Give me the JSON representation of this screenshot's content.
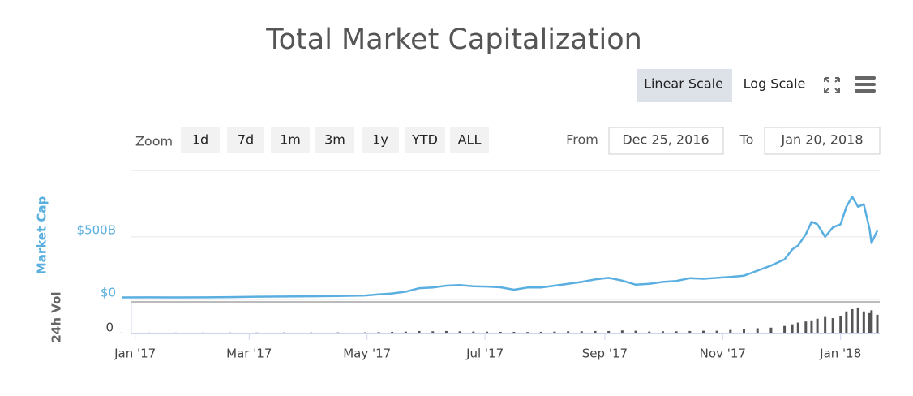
{
  "chart_data": [
    {
      "type": "line",
      "title": "Total Market Capitalization",
      "y_label": "Market Cap",
      "color": "#5aafe0",
      "x": [
        "2016-12-25",
        "2017-01-08",
        "2017-01-22",
        "2017-02-05",
        "2017-02-19",
        "2017-03-05",
        "2017-03-19",
        "2017-04-02",
        "2017-04-16",
        "2017-04-30",
        "2017-05-07",
        "2017-05-14",
        "2017-05-21",
        "2017-05-28",
        "2017-06-04",
        "2017-06-11",
        "2017-06-18",
        "2017-06-25",
        "2017-07-02",
        "2017-07-09",
        "2017-07-16",
        "2017-07-23",
        "2017-07-30",
        "2017-08-06",
        "2017-08-13",
        "2017-08-20",
        "2017-08-27",
        "2017-09-03",
        "2017-09-10",
        "2017-09-17",
        "2017-09-24",
        "2017-10-01",
        "2017-10-08",
        "2017-10-15",
        "2017-10-22",
        "2017-10-29",
        "2017-11-05",
        "2017-11-12",
        "2017-11-19",
        "2017-11-26",
        "2017-12-03",
        "2017-12-07",
        "2017-12-10",
        "2017-12-14",
        "2017-12-17",
        "2017-12-20",
        "2017-12-24",
        "2017-12-28",
        "2018-01-01",
        "2018-01-04",
        "2018-01-07",
        "2018-01-10",
        "2018-01-13",
        "2018-01-16",
        "2018-01-17",
        "2018-01-20"
      ],
      "values": [
        16,
        17,
        16,
        17,
        19,
        22,
        23,
        25,
        28,
        32,
        40,
        48,
        62,
        90,
        95,
        110,
        115,
        105,
        103,
        97,
        78,
        95,
        95,
        110,
        125,
        140,
        160,
        172,
        150,
        118,
        125,
        140,
        148,
        170,
        165,
        172,
        180,
        190,
        230,
        270,
        320,
        400,
        430,
        520,
        620,
        600,
        500,
        575,
        600,
        740,
        820,
        740,
        760,
        560,
        450,
        550
      ],
      "xlim": [
        "2016-12-25",
        "2018-01-20"
      ],
      "xticks": [
        {
          "value": "2017-01-01",
          "label": "Jan '17"
        },
        {
          "value": "2017-03-01",
          "label": "Mar '17"
        },
        {
          "value": "2017-05-01",
          "label": "May '17"
        },
        {
          "value": "2017-07-01",
          "label": "Jul '17"
        },
        {
          "value": "2017-09-01",
          "label": "Sep '17"
        },
        {
          "value": "2017-11-01",
          "label": "Nov '17"
        },
        {
          "value": "2018-01-01",
          "label": "Jan '18"
        }
      ],
      "ylim": [
        0,
        1030
      ],
      "yticks": [
        {
          "value": 0,
          "label": "$0"
        },
        {
          "value": 500,
          "label": "$500B"
        }
      ],
      "grid": true
    },
    {
      "type": "bar",
      "y_label": "24h Vol",
      "color": "#555555",
      "x": [
        "2016-12-25",
        "2017-01-08",
        "2017-01-22",
        "2017-02-05",
        "2017-02-19",
        "2017-03-05",
        "2017-03-19",
        "2017-04-02",
        "2017-04-16",
        "2017-04-30",
        "2017-05-07",
        "2017-05-14",
        "2017-05-21",
        "2017-05-28",
        "2017-06-04",
        "2017-06-11",
        "2017-06-18",
        "2017-06-25",
        "2017-07-02",
        "2017-07-09",
        "2017-07-16",
        "2017-07-23",
        "2017-07-30",
        "2017-08-06",
        "2017-08-13",
        "2017-08-20",
        "2017-08-27",
        "2017-09-03",
        "2017-09-10",
        "2017-09-17",
        "2017-09-24",
        "2017-10-01",
        "2017-10-08",
        "2017-10-15",
        "2017-10-22",
        "2017-10-29",
        "2017-11-05",
        "2017-11-12",
        "2017-11-19",
        "2017-11-26",
        "2017-12-03",
        "2017-12-07",
        "2017-12-10",
        "2017-12-14",
        "2017-12-17",
        "2017-12-20",
        "2017-12-24",
        "2017-12-28",
        "2018-01-01",
        "2018-01-04",
        "2018-01-07",
        "2018-01-10",
        "2018-01-13",
        "2018-01-16",
        "2018-01-17",
        "2018-01-20"
      ],
      "values": [
        0.2,
        0.2,
        0.2,
        0.2,
        0.3,
        0.3,
        0.4,
        0.4,
        0.5,
        0.6,
        1,
        1.5,
        2,
        3,
        2.5,
        3,
        2.5,
        2,
        1.8,
        1.5,
        1.5,
        1.2,
        1.5,
        2,
        2.5,
        2.5,
        3,
        3,
        4,
        3.5,
        2,
        2.5,
        2.5,
        3,
        3.5,
        3.5,
        5,
        6,
        8,
        9,
        12,
        15,
        18,
        20,
        22,
        25,
        28,
        26,
        30,
        38,
        42,
        45,
        38,
        35,
        40,
        32
      ],
      "xlim": [
        "2016-12-25",
        "2018-01-20"
      ],
      "ylim": [
        0,
        55
      ],
      "yticks": [
        0
      ]
    }
  ],
  "controls": {
    "scales": [
      "Linear Scale",
      "Log Scale"
    ],
    "zoom_label": "Zoom",
    "zoom": [
      "1d",
      "7d",
      "1m",
      "3m",
      "1y",
      "YTD",
      "ALL"
    ],
    "from_label": "From",
    "from": "Dec 25, 2016",
    "to_label": "To",
    "to": "Jan 20, 2018"
  }
}
